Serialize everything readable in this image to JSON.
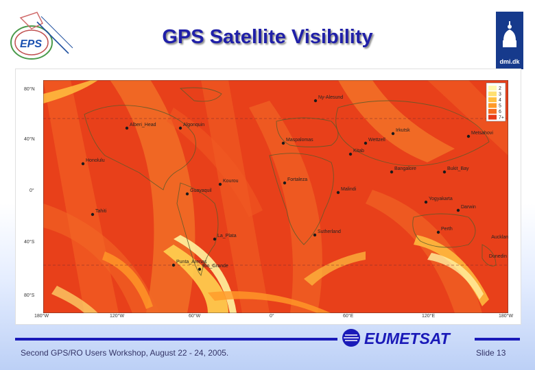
{
  "slide": {
    "title": "GPS Satellite Visibility",
    "footer_left": "Second GPS/RO Users Workshop, August 22 - 24, 2005.",
    "footer_right": "Slide 13",
    "eps_logo": "EPS",
    "dmi_logo": "dmi.dk",
    "eumetsat_logo": "EUMETSAT"
  },
  "map": {
    "y_ticks": [
      "80°N",
      "40°N",
      "0°",
      "40°S",
      "80°S"
    ],
    "x_ticks": [
      "180°W",
      "120°W",
      "60°W",
      "0°",
      "60°E",
      "120°E",
      "180°W"
    ],
    "legend": [
      "2",
      "3",
      "4",
      "5",
      "6",
      "7+"
    ],
    "legend_colors": [
      "#fff8b0",
      "#ffe070",
      "#ffc040",
      "#ff9a28",
      "#f66a20",
      "#e83a18"
    ],
    "cities": [
      {
        "name": "Alberi_Head"
      },
      {
        "name": "Algonquin"
      },
      {
        "name": "Ny-Alesund"
      },
      {
        "name": "Metsahovi"
      },
      {
        "name": "Wettzell"
      },
      {
        "name": "Maspalomas"
      },
      {
        "name": "Honolulu"
      },
      {
        "name": "Irkutsk"
      },
      {
        "name": "Kitab"
      },
      {
        "name": "Bangalore"
      },
      {
        "name": "Kourou"
      },
      {
        "name": "Guayaquil"
      },
      {
        "name": "Malindi"
      },
      {
        "name": "Tahiti"
      },
      {
        "name": "Bukit_Bay"
      },
      {
        "name": "Yogyakarta"
      },
      {
        "name": "Darwin"
      },
      {
        "name": "Sutherland"
      },
      {
        "name": "La_Plata"
      },
      {
        "name": "Perth"
      },
      {
        "name": "Auckland"
      },
      {
        "name": "Dunedin"
      },
      {
        "name": "Punta_Arenas"
      },
      {
        "name": "Rio_Grande"
      },
      {
        "name": "Fortaleza"
      }
    ]
  }
}
